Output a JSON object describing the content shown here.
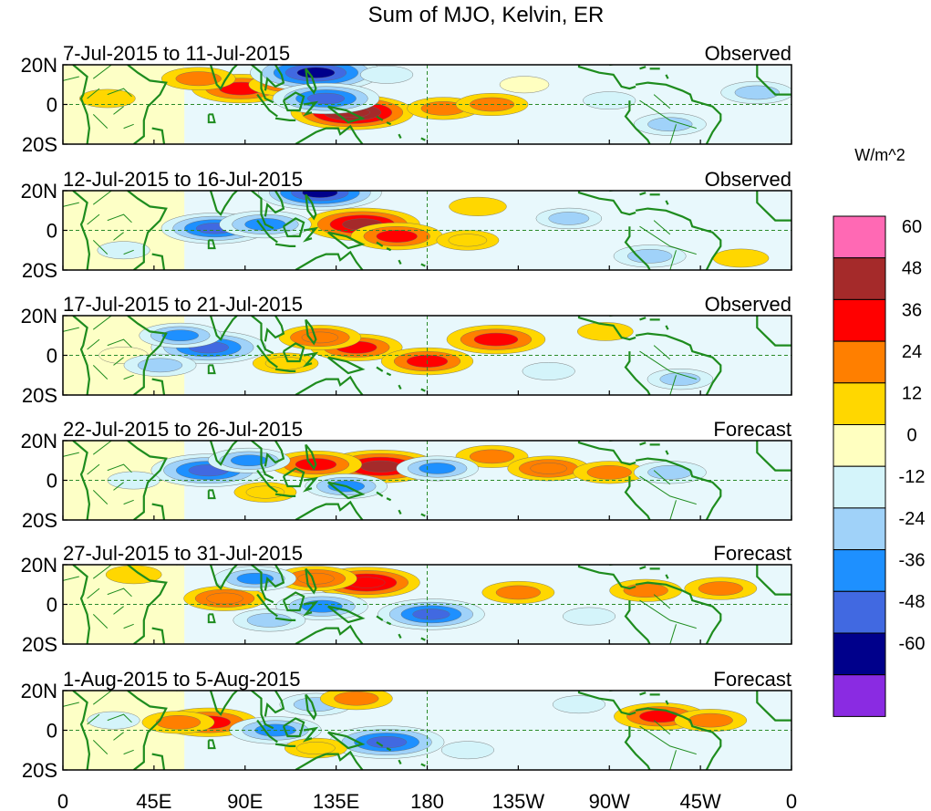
{
  "chart_data": {
    "type": "heatmap",
    "title": "Sum of MJO, Kelvin, ER",
    "units_label": "W/m^2",
    "x_ticks": [
      "0",
      "45E",
      "90E",
      "135E",
      "180",
      "135W",
      "90W",
      "45W",
      "0"
    ],
    "x_tick_values": [
      0,
      45,
      90,
      135,
      180,
      225,
      270,
      315,
      360
    ],
    "xlim": [
      0,
      360
    ],
    "y_ticks": [
      "20N",
      "0",
      "20S"
    ],
    "y_tick_values": [
      20,
      0,
      -20
    ],
    "ylim": [
      -20,
      20
    ],
    "colorbar": {
      "labels": [
        "60",
        "48",
        "36",
        "24",
        "12",
        "0",
        "-12",
        "-24",
        "-36",
        "-48",
        "-60"
      ],
      "colors": [
        "#ff69b4",
        "#a52a2a",
        "#ff0000",
        "#ff7f00",
        "#ffd700",
        "#ffffc0",
        "#d4f4fa",
        "#a0d2f9",
        "#1e90ff",
        "#4169e1",
        "#00008b",
        "#8a2be2"
      ]
    },
    "panels": [
      {
        "period": "7-Jul-2015 to 11-Jul-2015",
        "status": "Observed",
        "features": [
          {
            "lon": 143,
            "lat": -4,
            "value": 55
          },
          {
            "lon": 88,
            "lat": 8,
            "value": 40
          },
          {
            "lon": 67,
            "lat": 13,
            "value": 25
          },
          {
            "lon": 110,
            "lat": 10,
            "value": 25
          },
          {
            "lon": 125,
            "lat": 16,
            "value": -60
          },
          {
            "lon": 130,
            "lat": 3,
            "value": -45
          },
          {
            "lon": 188,
            "lat": -2,
            "value": 24
          },
          {
            "lon": 212,
            "lat": 0,
            "value": 24
          },
          {
            "lon": 22,
            "lat": 3,
            "value": 14
          },
          {
            "lon": 228,
            "lat": 10,
            "value": 10
          },
          {
            "lon": 270,
            "lat": 2,
            "value": -12
          },
          {
            "lon": 300,
            "lat": -10,
            "value": -24
          },
          {
            "lon": 343,
            "lat": 6,
            "value": -24
          },
          {
            "lon": 160,
            "lat": 15,
            "value": -12
          }
        ]
      },
      {
        "period": "12-Jul-2015 to 16-Jul-2015",
        "status": "Observed",
        "features": [
          {
            "lon": 148,
            "lat": 3,
            "value": 50
          },
          {
            "lon": 165,
            "lat": -3,
            "value": 36
          },
          {
            "lon": 75,
            "lat": 1,
            "value": -45
          },
          {
            "lon": 100,
            "lat": 3,
            "value": -36
          },
          {
            "lon": 127,
            "lat": 19,
            "value": -55
          },
          {
            "lon": 200,
            "lat": -5,
            "value": 18
          },
          {
            "lon": 205,
            "lat": 12,
            "value": 15
          },
          {
            "lon": 250,
            "lat": 6,
            "value": -20
          },
          {
            "lon": 290,
            "lat": -13,
            "value": -24
          },
          {
            "lon": 335,
            "lat": -14,
            "value": 14
          },
          {
            "lon": 30,
            "lat": -10,
            "value": -12
          }
        ]
      },
      {
        "period": "17-Jul-2015 to 21-Jul-2015",
        "status": "Observed",
        "features": [
          {
            "lon": 72,
            "lat": 4,
            "value": -50
          },
          {
            "lon": 58,
            "lat": 10,
            "value": -30
          },
          {
            "lon": 145,
            "lat": 4,
            "value": 36
          },
          {
            "lon": 180,
            "lat": -3,
            "value": 36
          },
          {
            "lon": 127,
            "lat": 9,
            "value": 30
          },
          {
            "lon": 214,
            "lat": 8,
            "value": 40
          },
          {
            "lon": 110,
            "lat": -4,
            "value": 20
          },
          {
            "lon": 268,
            "lat": 12,
            "value": 14
          },
          {
            "lon": 240,
            "lat": -8,
            "value": -12
          },
          {
            "lon": 305,
            "lat": -12,
            "value": -20
          },
          {
            "lon": 30,
            "lat": 0,
            "value": 10
          },
          {
            "lon": 48,
            "lat": -5,
            "value": -24
          }
        ]
      },
      {
        "period": "22-Jul-2015 to 26-Jul-2015",
        "status": "Forecast",
        "features": [
          {
            "lon": 157,
            "lat": 7,
            "value": 50
          },
          {
            "lon": 125,
            "lat": 8,
            "value": 36
          },
          {
            "lon": 72,
            "lat": 5,
            "value": -50
          },
          {
            "lon": 92,
            "lat": 10,
            "value": -30
          },
          {
            "lon": 140,
            "lat": -3,
            "value": -30
          },
          {
            "lon": 212,
            "lat": 12,
            "value": 24
          },
          {
            "lon": 240,
            "lat": 6,
            "value": 30
          },
          {
            "lon": 270,
            "lat": 4,
            "value": 24
          },
          {
            "lon": 185,
            "lat": 6,
            "value": -30
          },
          {
            "lon": 300,
            "lat": 4,
            "value": -24
          },
          {
            "lon": 100,
            "lat": -6,
            "value": 18
          },
          {
            "lon": 35,
            "lat": 0,
            "value": -12
          }
        ]
      },
      {
        "period": "27-Jul-2015 to 31-Jul-2015",
        "status": "Forecast",
        "features": [
          {
            "lon": 150,
            "lat": 11,
            "value": 45
          },
          {
            "lon": 125,
            "lat": 13,
            "value": 30
          },
          {
            "lon": 80,
            "lat": 3,
            "value": 30
          },
          {
            "lon": 182,
            "lat": -5,
            "value": -45
          },
          {
            "lon": 128,
            "lat": -1,
            "value": -36
          },
          {
            "lon": 95,
            "lat": 13,
            "value": -30
          },
          {
            "lon": 225,
            "lat": 6,
            "value": 24
          },
          {
            "lon": 288,
            "lat": 7,
            "value": 24
          },
          {
            "lon": 325,
            "lat": 8,
            "value": 24
          },
          {
            "lon": 260,
            "lat": -6,
            "value": -12
          },
          {
            "lon": 102,
            "lat": -8,
            "value": -24
          },
          {
            "lon": 35,
            "lat": 15,
            "value": 14
          }
        ]
      },
      {
        "period": "1-Aug-2015 to 5-Aug-2015",
        "status": "Forecast",
        "features": [
          {
            "lon": 72,
            "lat": 4,
            "value": 40
          },
          {
            "lon": 57,
            "lat": 4,
            "value": 24
          },
          {
            "lon": 160,
            "lat": -6,
            "value": -50
          },
          {
            "lon": 105,
            "lat": 0,
            "value": -36
          },
          {
            "lon": 125,
            "lat": 13,
            "value": -24
          },
          {
            "lon": 145,
            "lat": 16,
            "value": 24
          },
          {
            "lon": 295,
            "lat": 7,
            "value": 36
          },
          {
            "lon": 320,
            "lat": 5,
            "value": 24
          },
          {
            "lon": 200,
            "lat": -10,
            "value": -12
          },
          {
            "lon": 25,
            "lat": 5,
            "value": -12
          },
          {
            "lon": 125,
            "lat": -9,
            "value": 18
          },
          {
            "lon": 255,
            "lat": 13,
            "value": -12
          }
        ]
      }
    ]
  }
}
